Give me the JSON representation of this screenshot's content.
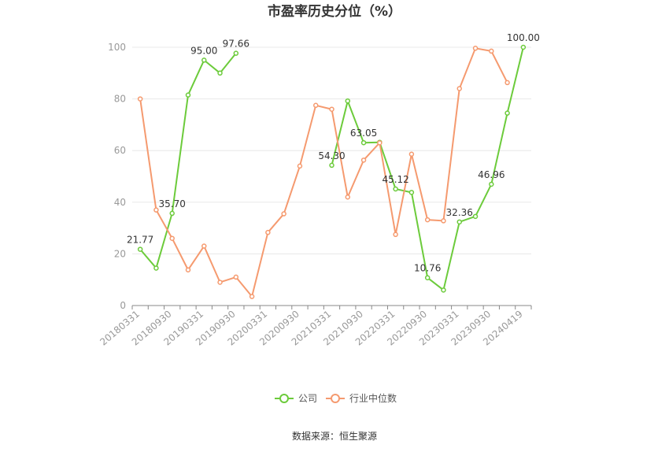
{
  "chart_data": {
    "type": "line",
    "title": "市盈率历史分位（%）",
    "source": "数据来源：恒生聚源",
    "ylim": [
      0,
      100
    ],
    "yticks": [
      "0",
      "20",
      "40",
      "60",
      "80",
      "100"
    ],
    "x_tick_labels": [
      "20180331",
      "20180930",
      "20190331",
      "20190930",
      "20200331",
      "20200930",
      "20210331",
      "20210930",
      "20220331",
      "20220930",
      "20230331",
      "20230930",
      "20240419"
    ],
    "legend": [
      "公司",
      "行业中位数"
    ],
    "colors": {
      "company": "#6ccb3b",
      "industry": "#f59a6f",
      "grid": "#e8e8e8",
      "axis": "#888888"
    },
    "x": [
      "20180331",
      "20180630",
      "20180930",
      "20181231",
      "20190331",
      "20190630",
      "20190930",
      "20191231",
      "20200331",
      "20200630",
      "20200930",
      "20201231",
      "20210331",
      "20210630",
      "20210930",
      "20211231",
      "20220331",
      "20220630",
      "20220930",
      "20221231",
      "20230331",
      "20230630",
      "20230930",
      "20231231",
      "20240419"
    ],
    "series": [
      {
        "name": "公司",
        "values": [
          21.77,
          14.5,
          35.7,
          81.5,
          95.0,
          90.0,
          97.66,
          null,
          null,
          null,
          null,
          null,
          54.3,
          79.2,
          63.05,
          63.2,
          45.12,
          43.8,
          10.76,
          6.0,
          32.36,
          34.5,
          46.96,
          74.5,
          100.0
        ]
      },
      {
        "name": "行业中位数",
        "values": [
          80.0,
          37.0,
          26.0,
          13.8,
          23.0,
          9.0,
          11.0,
          3.5,
          28.3,
          35.5,
          54.0,
          77.5,
          76.0,
          42.0,
          56.3,
          63.0,
          27.5,
          58.6,
          33.2,
          32.8,
          84.0,
          99.6,
          98.5,
          86.3,
          null
        ]
      }
    ],
    "data_labels": [
      {
        "series": 0,
        "index": 0,
        "text": "21.77"
      },
      {
        "series": 0,
        "index": 2,
        "text": "35.70"
      },
      {
        "series": 0,
        "index": 4,
        "text": "95.00"
      },
      {
        "series": 0,
        "index": 6,
        "text": "97.66"
      },
      {
        "series": 0,
        "index": 12,
        "text": "54.30"
      },
      {
        "series": 0,
        "index": 14,
        "text": "63.05"
      },
      {
        "series": 0,
        "index": 16,
        "text": "45.12"
      },
      {
        "series": 0,
        "index": 18,
        "text": "10.76"
      },
      {
        "series": 0,
        "index": 20,
        "text": "32.36"
      },
      {
        "series": 0,
        "index": 22,
        "text": "46.96"
      },
      {
        "series": 0,
        "index": 24,
        "text": "100.00"
      }
    ]
  }
}
